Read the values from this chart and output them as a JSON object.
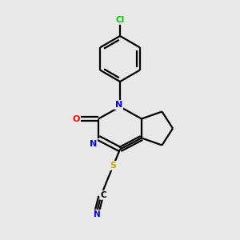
{
  "bg_color": "#e8e8e8",
  "bond_color": "#000000",
  "atom_colors": {
    "N": "#0000ff",
    "O": "#ff0000",
    "S": "#ccaa00",
    "Cl": "#00cc00",
    "C": "#000000"
  },
  "figsize": [
    3.0,
    3.0
  ],
  "dpi": 100
}
